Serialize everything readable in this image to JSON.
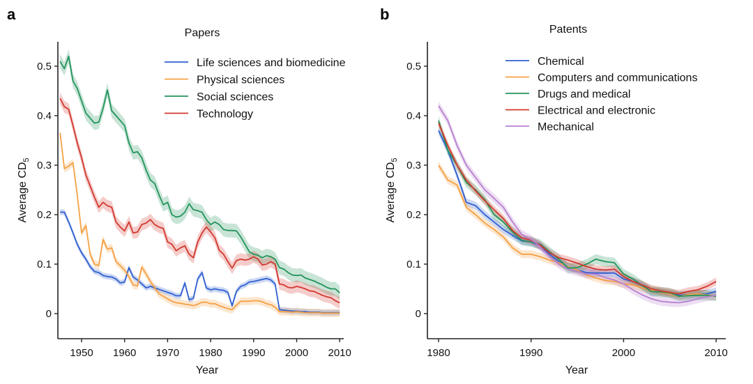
{
  "chart_data": [
    {
      "type": "line",
      "panel_letter": "a",
      "title": "Papers",
      "xlabel": "Year",
      "ylabel": "Average CD",
      "ylabel_subscript": "5",
      "xlim": [
        1944,
        2011
      ],
      "ylim": [
        -0.05,
        0.55
      ],
      "xticks": [
        1950,
        1960,
        1970,
        1980,
        1990,
        2000,
        2010
      ],
      "xtick_labels": [
        "1950",
        "1960",
        "1970",
        "1980",
        "1990",
        "2000",
        "2010"
      ],
      "yticks": [
        0,
        0.1,
        0.2,
        0.3,
        0.4,
        0.5
      ],
      "ytick_labels": [
        "0",
        "0.1",
        "0.2",
        "0.3",
        "0.4",
        "0.5"
      ],
      "grid": false,
      "legend_position": "top-right",
      "x_start": 1945,
      "series": [
        {
          "name": "Life sciences and biomedicine",
          "color": "#2f5fd0",
          "band": 0.006,
          "values": [
            0.205,
            0.205,
            0.185,
            0.163,
            0.14,
            0.123,
            0.11,
            0.095,
            0.085,
            0.083,
            0.077,
            0.075,
            0.074,
            0.07,
            0.062,
            0.064,
            0.093,
            0.074,
            0.068,
            0.06,
            0.052,
            0.055,
            0.052,
            0.049,
            0.046,
            0.043,
            0.04,
            0.036,
            0.036,
            0.062,
            0.028,
            0.031,
            0.07,
            0.083,
            0.052,
            0.048,
            0.05,
            0.048,
            0.047,
            0.043,
            0.016,
            0.045,
            0.055,
            0.058,
            0.064,
            0.065,
            0.067,
            0.069,
            0.071,
            0.068,
            0.06,
            0.008,
            0.007,
            0.006,
            0.005,
            0.005,
            0.004,
            0.004,
            0.003,
            0.003,
            0.003,
            0.002,
            0.002,
            0.002,
            0.002,
            0.002
          ]
        },
        {
          "name": "Physical sciences",
          "color": "#f5a043",
          "band": 0.008,
          "values": [
            0.365,
            0.293,
            0.298,
            0.305,
            0.24,
            0.163,
            0.178,
            0.12,
            0.1,
            0.097,
            0.15,
            0.13,
            0.133,
            0.105,
            0.097,
            0.088,
            0.075,
            0.058,
            0.056,
            0.094,
            0.08,
            0.065,
            0.052,
            0.04,
            0.035,
            0.03,
            0.025,
            0.022,
            0.021,
            0.019,
            0.018,
            0.016,
            0.019,
            0.023,
            0.023,
            0.02,
            0.02,
            0.016,
            0.013,
            0.01,
            0.008,
            0.017,
            0.025,
            0.025,
            0.025,
            0.026,
            0.026,
            0.024,
            0.02,
            0.018,
            0.013,
            0.004,
            0.004,
            0.004,
            0.003,
            0.004,
            0.003,
            0.002,
            0.002,
            0.002,
            0.002,
            0.001,
            0.001,
            0.001,
            0.001,
            0.001
          ]
        },
        {
          "name": "Social sciences",
          "color": "#22945c",
          "band": 0.014,
          "values": [
            0.51,
            0.495,
            0.52,
            0.47,
            0.455,
            0.43,
            0.405,
            0.395,
            0.385,
            0.387,
            0.415,
            0.452,
            0.41,
            0.4,
            0.39,
            0.38,
            0.345,
            0.325,
            0.327,
            0.315,
            0.29,
            0.27,
            0.263,
            0.24,
            0.22,
            0.225,
            0.2,
            0.195,
            0.197,
            0.205,
            0.222,
            0.21,
            0.208,
            0.205,
            0.19,
            0.18,
            0.185,
            0.18,
            0.17,
            0.168,
            0.168,
            0.167,
            0.155,
            0.14,
            0.125,
            0.12,
            0.118,
            0.113,
            0.117,
            0.115,
            0.11,
            0.093,
            0.09,
            0.083,
            0.078,
            0.077,
            0.078,
            0.072,
            0.069,
            0.066,
            0.062,
            0.058,
            0.053,
            0.05,
            0.05,
            0.042
          ]
        },
        {
          "name": "Technology",
          "color": "#d2382e",
          "band": 0.012,
          "values": [
            0.435,
            0.418,
            0.413,
            0.38,
            0.345,
            0.315,
            0.28,
            0.258,
            0.235,
            0.215,
            0.225,
            0.218,
            0.215,
            0.185,
            0.175,
            0.167,
            0.185,
            0.163,
            0.165,
            0.18,
            0.183,
            0.19,
            0.18,
            0.175,
            0.172,
            0.145,
            0.14,
            0.127,
            0.133,
            0.137,
            0.12,
            0.113,
            0.145,
            0.163,
            0.175,
            0.165,
            0.153,
            0.128,
            0.12,
            0.105,
            0.092,
            0.107,
            0.11,
            0.108,
            0.11,
            0.115,
            0.11,
            0.098,
            0.1,
            0.105,
            0.1,
            0.06,
            0.058,
            0.053,
            0.052,
            0.055,
            0.053,
            0.05,
            0.046,
            0.045,
            0.041,
            0.037,
            0.034,
            0.032,
            0.026,
            0.022
          ]
        }
      ]
    },
    {
      "type": "line",
      "panel_letter": "b",
      "title": "Patents",
      "xlabel": "Year",
      "ylabel": "Average CD",
      "ylabel_subscript": "5",
      "xlim": [
        1979,
        2011
      ],
      "ylim": [
        -0.05,
        0.55
      ],
      "xticks": [
        1980,
        1990,
        2000,
        2010
      ],
      "xtick_labels": [
        "1980",
        "1990",
        "2000",
        "2010"
      ],
      "yticks": [
        0,
        0.1,
        0.2,
        0.3,
        0.4,
        0.5
      ],
      "ytick_labels": [
        "0",
        "0.1",
        "0.2",
        "0.3",
        "0.4",
        "0.5"
      ],
      "grid": false,
      "legend_position": "top-right",
      "x_start": 1980,
      "series": [
        {
          "name": "Chemical",
          "color": "#2f5fd0",
          "band": 0.008,
          "values": [
            0.37,
            0.33,
            0.28,
            0.225,
            0.218,
            0.2,
            0.185,
            0.17,
            0.158,
            0.147,
            0.145,
            0.137,
            0.12,
            0.105,
            0.095,
            0.088,
            0.083,
            0.082,
            0.082,
            0.082,
            0.07,
            0.065,
            0.057,
            0.045,
            0.043,
            0.04,
            0.037,
            0.038,
            0.04,
            0.04,
            0.045
          ]
        },
        {
          "name": "Computers and communications",
          "color": "#f5a043",
          "band": 0.008,
          "values": [
            0.3,
            0.27,
            0.26,
            0.215,
            0.2,
            0.183,
            0.17,
            0.155,
            0.133,
            0.12,
            0.12,
            0.115,
            0.108,
            0.103,
            0.095,
            0.088,
            0.078,
            0.072,
            0.067,
            0.065,
            0.06,
            0.058,
            0.052,
            0.047,
            0.043,
            0.04,
            0.035,
            0.038,
            0.04,
            0.038,
            0.035
          ]
        },
        {
          "name": "Drugs and medical",
          "color": "#22945c",
          "band": 0.01,
          "values": [
            0.39,
            0.33,
            0.3,
            0.265,
            0.25,
            0.23,
            0.2,
            0.185,
            0.165,
            0.148,
            0.145,
            0.14,
            0.125,
            0.11,
            0.092,
            0.093,
            0.1,
            0.11,
            0.105,
            0.103,
            0.08,
            0.07,
            0.057,
            0.045,
            0.044,
            0.042,
            0.035,
            0.036,
            0.037,
            0.037,
            0.035
          ]
        },
        {
          "name": "Electrical and electronic",
          "color": "#d2382e",
          "band": 0.008,
          "values": [
            0.385,
            0.34,
            0.3,
            0.27,
            0.248,
            0.228,
            0.21,
            0.192,
            0.168,
            0.153,
            0.148,
            0.138,
            0.123,
            0.113,
            0.108,
            0.102,
            0.095,
            0.09,
            0.088,
            0.09,
            0.075,
            0.065,
            0.058,
            0.05,
            0.046,
            0.043,
            0.04,
            0.045,
            0.048,
            0.055,
            0.065
          ]
        },
        {
          "name": "Mechanical",
          "color": "#b77fcf",
          "band": 0.009,
          "values": [
            0.42,
            0.39,
            0.34,
            0.3,
            0.275,
            0.25,
            0.233,
            0.215,
            0.185,
            0.16,
            0.15,
            0.135,
            0.115,
            0.1,
            0.09,
            0.085,
            0.08,
            0.08,
            0.073,
            0.068,
            0.06,
            0.048,
            0.038,
            0.03,
            0.025,
            0.023,
            0.022,
            0.025,
            0.03,
            0.034,
            0.037
          ]
        }
      ]
    }
  ]
}
